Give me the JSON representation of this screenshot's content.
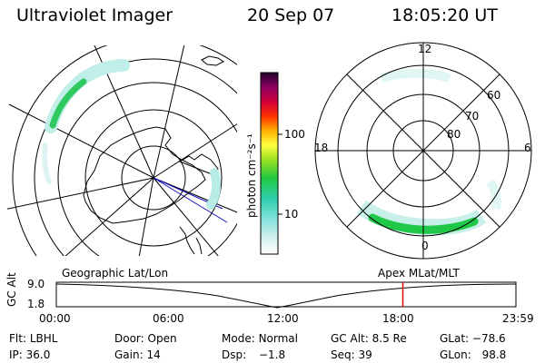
{
  "header": {
    "instrument": "Ultraviolet Imager",
    "date": "20 Sep 07",
    "time": "18:05:20 UT"
  },
  "colorbar": {
    "unit_label": "photon cm⁻²s⁻¹",
    "ticks": [
      "100",
      "10"
    ]
  },
  "polar_plot": {
    "mlt_labels": [
      "12",
      "18",
      "6",
      "0"
    ],
    "mlat_labels": [
      "60",
      "70",
      "80"
    ]
  },
  "timeline": {
    "left_caption": "Geographic Lat/Lon",
    "right_caption": "Apex MLat/MLT",
    "axis_label": "GC Alt",
    "y_ticks": [
      "9.0",
      "1.8"
    ],
    "x_ticks": [
      "00:00",
      "06:00",
      "12:00",
      "18:00",
      "23:59"
    ],
    "current_time_fraction": 0.754
  },
  "status": {
    "filter_label": "Flt:",
    "filter_value": "LBHL",
    "ip_label": "IP:",
    "ip_value": "36.0",
    "door_label": "Door:",
    "door_value": "Open",
    "gain_label": "Gain:",
    "gain_value": "14",
    "mode_label": "Mode:",
    "mode_value": "Normal",
    "dsp_label": "Dsp:",
    "dsp_value": "−1.8",
    "gcalt_label": "GC Alt:",
    "gcalt_value": "8.5 Re",
    "seq_label": "Seq:",
    "seq_value": "39",
    "glat_label": "GLat:",
    "glat_value": "−78.6",
    "glon_label": "GLon:",
    "glon_value": "98.8"
  },
  "colors": {
    "marker": "#e00000",
    "aurora_core": "#28c850",
    "aurora_edge": "#a8e8e0"
  }
}
